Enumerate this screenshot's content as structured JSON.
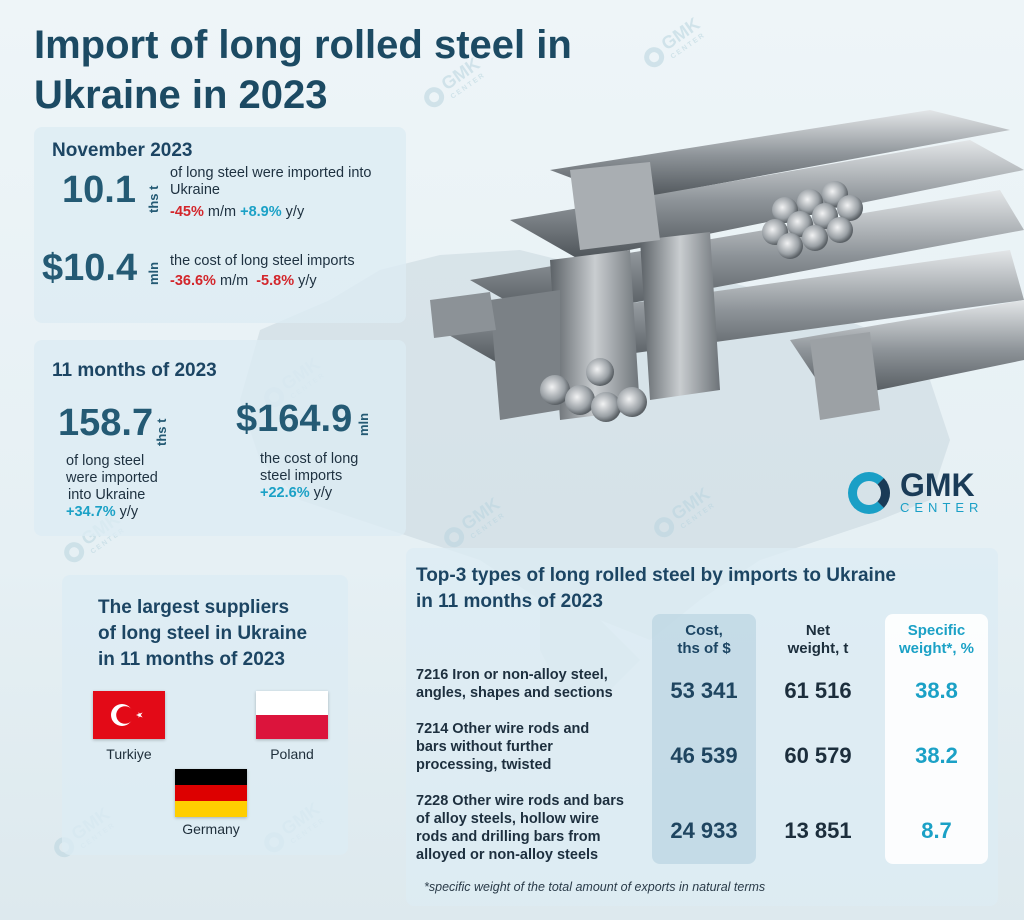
{
  "title": "Import of long rolled steel in Ukraine in 2023",
  "november": {
    "heading": "November 2023",
    "volume": {
      "value": "10.1",
      "unit": "ths t",
      "text": "of long steel were imported into Ukraine",
      "mm": "-45%",
      "mm_label": "m/m",
      "yy": "+8.9%",
      "yy_label": "y/y"
    },
    "cost": {
      "value": "$10.4",
      "unit": "mln",
      "text": "the cost of long steel imports",
      "mm": "-36.6%",
      "mm_label": "m/m",
      "yy": "-5.8%",
      "yy_label": "y/y"
    }
  },
  "eleven_months": {
    "heading": "11 months of 2023",
    "volume": {
      "value": "158.7",
      "unit": "ths t",
      "text_1": "of long steel",
      "text_2": "were imported",
      "text_3": "into Ukraine",
      "yy": "+34.7%",
      "yy_label": "y/y"
    },
    "cost": {
      "value": "$164.9",
      "unit": "mln",
      "text_1": "the cost of long",
      "text_2": "steel imports",
      "yy": "+22.6%",
      "yy_label": "y/y"
    }
  },
  "suppliers": {
    "heading_1": "The largest suppliers",
    "heading_2": "of long steel in Ukraine",
    "heading_3": "in 11 months of 2023",
    "items": [
      {
        "name": "Turkiye",
        "flag": "turkey-flag"
      },
      {
        "name": "Poland",
        "flag": "poland-flag"
      },
      {
        "name": "Germany",
        "flag": "germany-flag"
      }
    ]
  },
  "logo": {
    "name": "GMK",
    "sub": "CENTER",
    "watermark": "GMK",
    "watermark_sub": "CENTER"
  },
  "top3": {
    "heading_1": "Top-3 types of long rolled steel by imports to Ukraine",
    "heading_2": "in 11 months of 2023",
    "columns": {
      "cost_1": "Cost,",
      "cost_2": "ths of $",
      "net_1": "Net",
      "net_2": "weight, t",
      "spec_1": "Specific",
      "spec_2": "weight*, %"
    },
    "rows": [
      {
        "label_1": "7216 Iron or non-alloy steel,",
        "label_2": "angles, shapes and sections",
        "label_3": "",
        "label_4": "",
        "cost": "53 341",
        "net": "61 516",
        "spec": "38.8"
      },
      {
        "label_1": "7214 Other wire rods and",
        "label_2": "bars without further",
        "label_3": "processing, twisted",
        "label_4": "",
        "cost": "46 539",
        "net": "60 579",
        "spec": "38.2"
      },
      {
        "label_1": "7228 Other wire rods and bars",
        "label_2": "of alloy steels, hollow wire",
        "label_3": "rods and drilling bars from",
        "label_4": "alloyed or non-alloy steels",
        "cost": "24 933",
        "net": "13 851",
        "spec": "8.7"
      }
    ],
    "footnote": "*specific weight of the total amount of exports in natural terms"
  },
  "colors": {
    "negative": "#d3262b",
    "positive": "#1ba1c6",
    "heading": "#1c4563",
    "accent": "#1a9fc6"
  }
}
